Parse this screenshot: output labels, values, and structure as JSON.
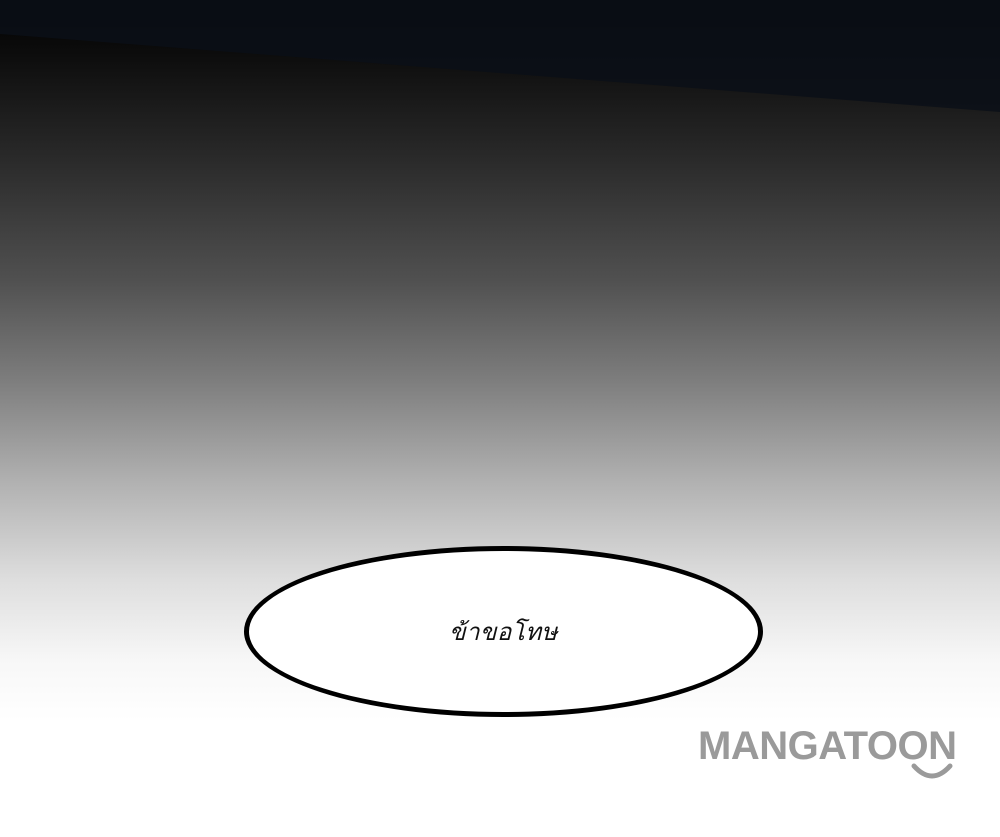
{
  "speech_bubble": {
    "text": "ข้าขอโทษ"
  },
  "watermark": {
    "text": "MANGATOON",
    "color": "#9a9a9a",
    "icon": "smile-icon"
  },
  "colors": {
    "bubble_fill": "#ffffff",
    "bubble_outline": "#000000",
    "top_band": "#0b0f18"
  }
}
